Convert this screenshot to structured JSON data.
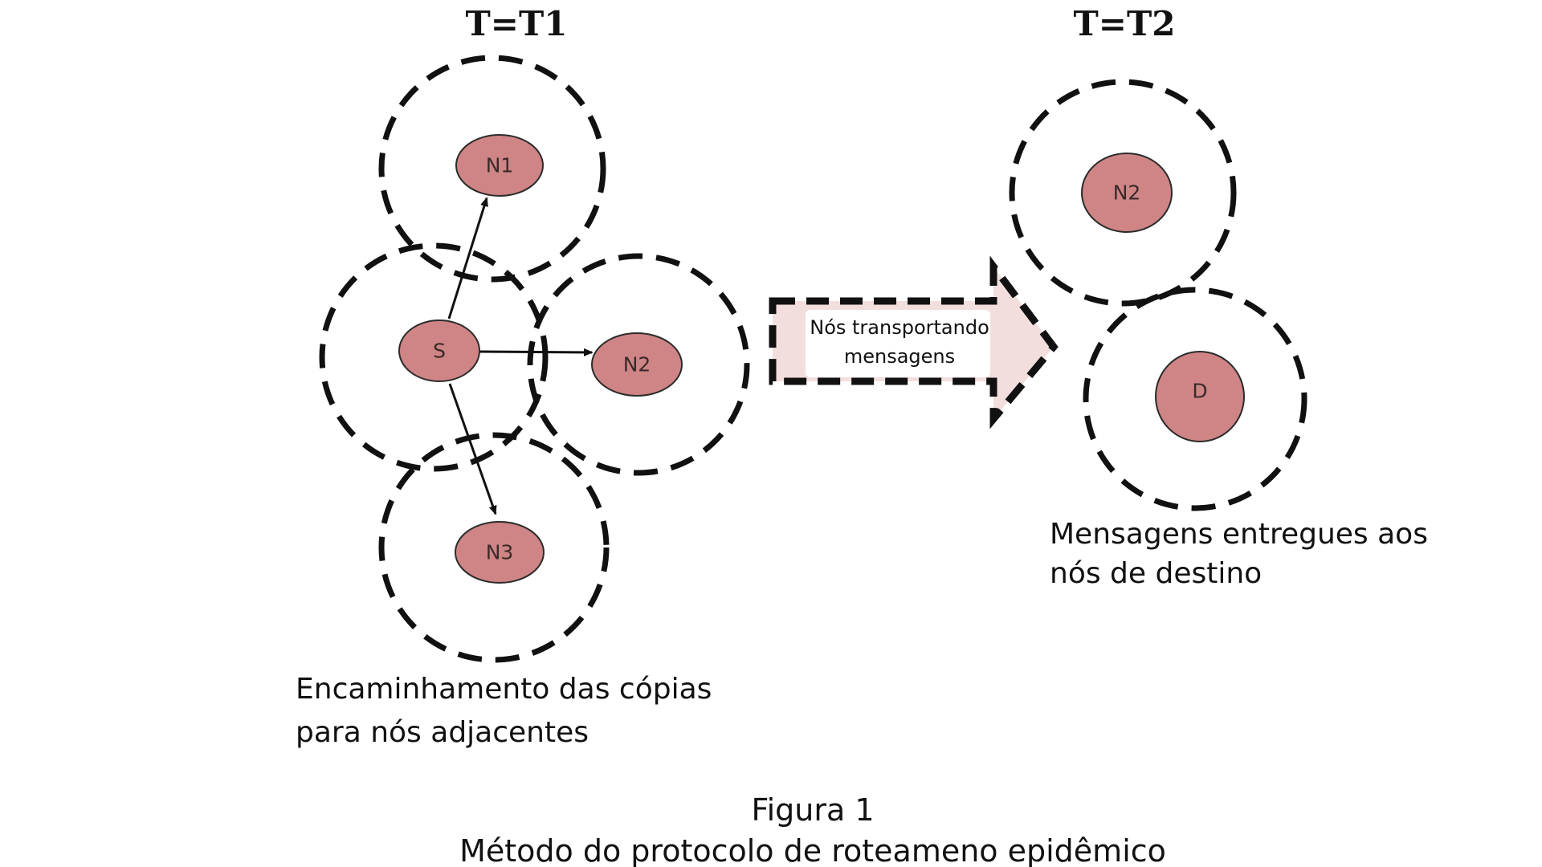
{
  "time_labels": {
    "t1": "T=T1",
    "t2": "T=T2"
  },
  "nodes_t1": {
    "n1": "N1",
    "s": "S",
    "n2": "N2",
    "n3": "N3"
  },
  "nodes_t2": {
    "n2": "N2",
    "d": "D"
  },
  "transition": {
    "line1": "Nós transportando",
    "line2": "mensagens"
  },
  "captions": {
    "left_line1": "Encaminhamento das cópias",
    "left_line2": "para nós adjacentes",
    "right_line1": "Mensagens entregues aos",
    "right_line2": "nós de destino"
  },
  "figure": {
    "number": "Figura 1",
    "title": "Método do protocolo de roteameno epidêmico"
  },
  "colors": {
    "node_fill": "#cf8585",
    "arrow_fill": "#f3dede",
    "stroke": "#111111"
  }
}
